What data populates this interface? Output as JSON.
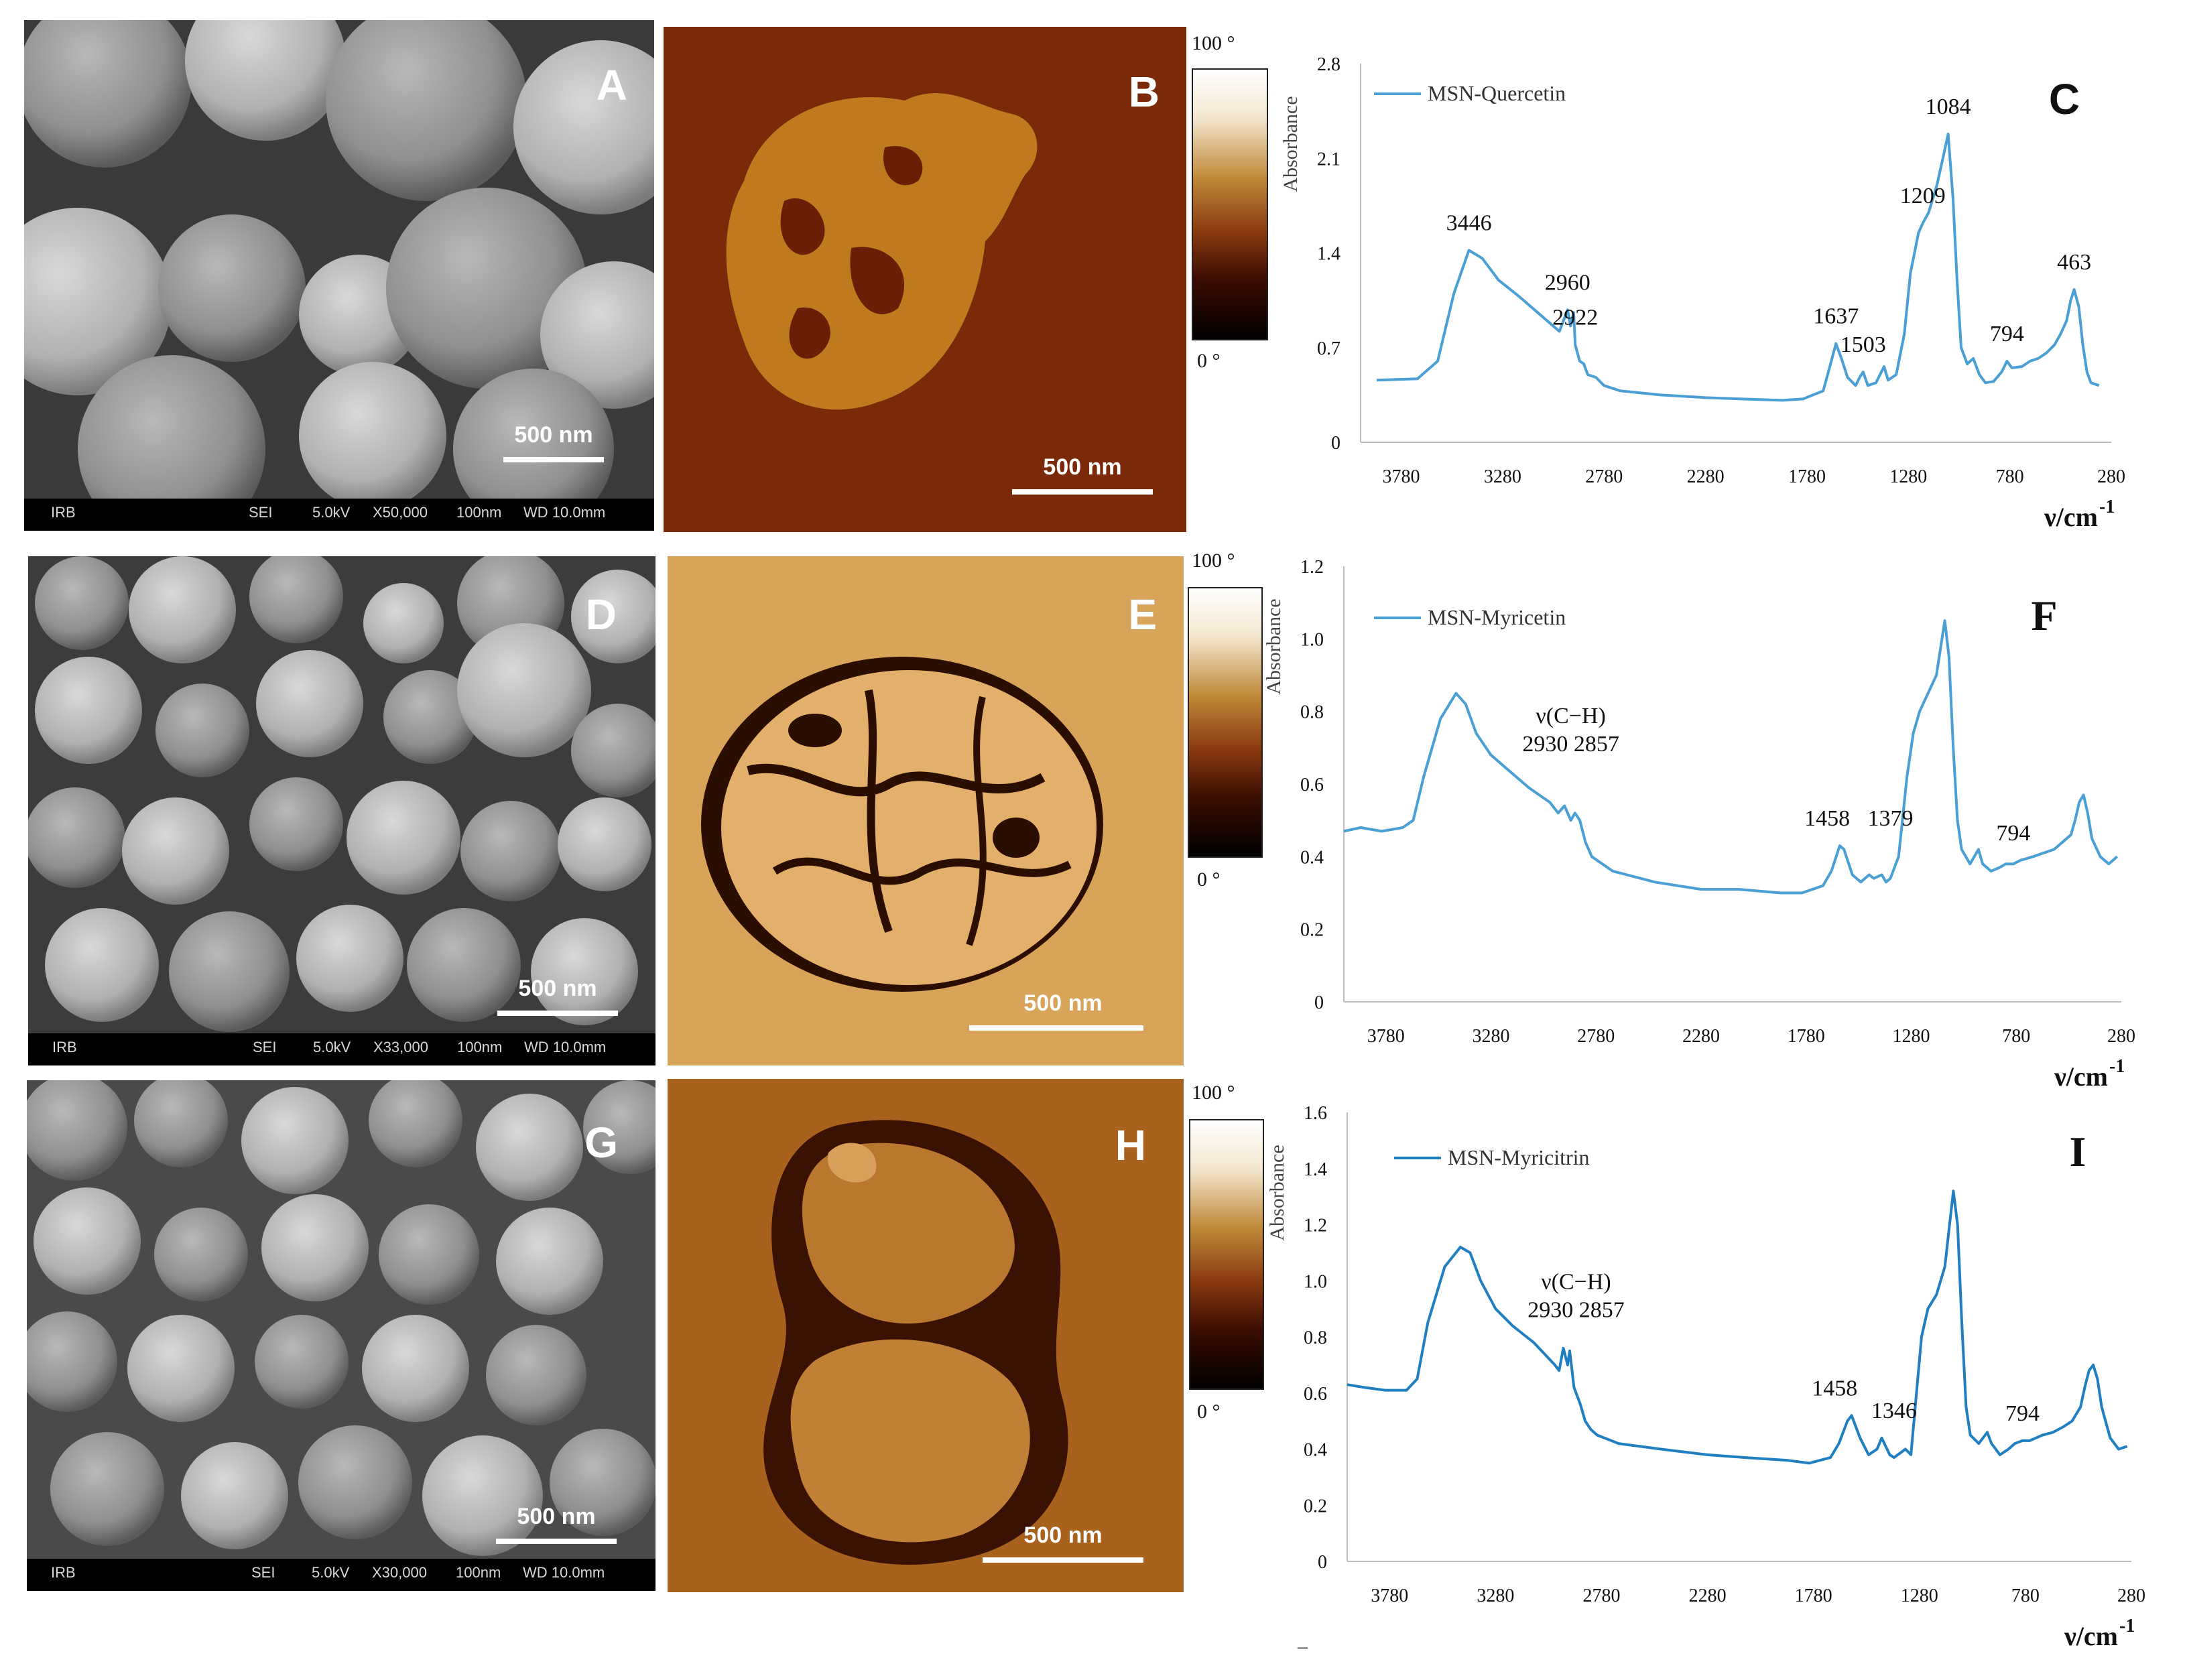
{
  "panels": {
    "A": {
      "letter": "A",
      "scale_label": "500 nm",
      "footer": {
        "lab": "IRB",
        "mode": "SEI",
        "kv": "5.0kV",
        "mag": "X50,000",
        "bar": "100nm",
        "wd": "WD 10.0mm"
      }
    },
    "D": {
      "letter": "D",
      "scale_label": "500 nm",
      "footer": {
        "lab": "IRB",
        "mode": "SEI",
        "kv": "5.0kV",
        "mag": "X33,000",
        "bar": "100nm",
        "wd": "WD 10.0mm"
      }
    },
    "G": {
      "letter": "G",
      "scale_label": "500 nm",
      "footer": {
        "lab": "IRB",
        "mode": "SEI",
        "kv": "5.0kV",
        "mag": "X30,000",
        "bar": "100nm",
        "wd": "WD 10.0mm"
      }
    },
    "B": {
      "letter": "B",
      "scale_label": "500 nm",
      "cbar_top": "100 °",
      "cbar_bottom": "0 °"
    },
    "E": {
      "letter": "E",
      "scale_label": "500 nm",
      "cbar_top": "100 °",
      "cbar_bottom": "0 °"
    },
    "H": {
      "letter": "H",
      "scale_label": "500 nm",
      "cbar_top": "100 °",
      "cbar_bottom": "0 °"
    }
  },
  "colors": {
    "spectrum_c": "#4a9fd4",
    "spectrum_f": "#4a9fd4",
    "spectrum_i": "#1f7fc0"
  },
  "chart_data": [
    {
      "type": "line",
      "letter": "C",
      "ylabel": "Absorbance",
      "xlabel": "ν/cm",
      "xlabel_exp": "-1",
      "xticks": [
        3780,
        3280,
        2780,
        2280,
        1780,
        1280,
        780,
        280
      ],
      "xlim": [
        3980,
        280
      ],
      "yticks": [
        "0",
        "0.7",
        "1.4",
        "2.1",
        "2.8"
      ],
      "ylim": [
        0,
        2.8
      ],
      "series": [
        {
          "name": "MSN-Quercetin",
          "x": [
            3900,
            3700,
            3600,
            3520,
            3446,
            3380,
            3300,
            3200,
            3100,
            3000,
            2980,
            2960,
            2945,
            2930,
            2922,
            2900,
            2880,
            2860,
            2820,
            2780,
            2700,
            2500,
            2280,
            2100,
            1900,
            1800,
            1700,
            1660,
            1637,
            1610,
            1580,
            1540,
            1520,
            1503,
            1480,
            1440,
            1400,
            1380,
            1340,
            1300,
            1270,
            1250,
            1230,
            1209,
            1180,
            1140,
            1110,
            1084,
            1060,
            1040,
            1020,
            990,
            960,
            930,
            900,
            860,
            820,
            794,
            770,
            720,
            680,
            640,
            600,
            560,
            530,
            500,
            480,
            463,
            440,
            420,
            400,
            380,
            340
          ],
          "y": [
            0.46,
            0.47,
            0.6,
            1.1,
            1.42,
            1.36,
            1.2,
            1.08,
            0.95,
            0.82,
            0.9,
            0.98,
            0.86,
            0.96,
            0.72,
            0.6,
            0.58,
            0.5,
            0.48,
            0.42,
            0.38,
            0.35,
            0.33,
            0.32,
            0.31,
            0.32,
            0.38,
            0.6,
            0.73,
            0.62,
            0.48,
            0.42,
            0.48,
            0.52,
            0.42,
            0.44,
            0.56,
            0.46,
            0.5,
            0.8,
            1.25,
            1.4,
            1.55,
            1.62,
            1.7,
            1.9,
            2.1,
            2.28,
            1.8,
            1.2,
            0.7,
            0.58,
            0.62,
            0.5,
            0.44,
            0.45,
            0.52,
            0.6,
            0.55,
            0.56,
            0.6,
            0.62,
            0.66,
            0.72,
            0.8,
            0.9,
            1.05,
            1.13,
            1.0,
            0.72,
            0.52,
            0.44,
            0.42
          ]
        }
      ],
      "annotations": [
        {
          "text": "3446",
          "x": 3446,
          "y": 1.42
        },
        {
          "text": "2960",
          "x": 2960,
          "y": 0.98
        },
        {
          "text": "2922",
          "x": 2922,
          "y": 0.72
        },
        {
          "text": "1637",
          "x": 1637,
          "y": 0.73
        },
        {
          "text": "1503",
          "x": 1503,
          "y": 0.52
        },
        {
          "text": "1209",
          "x": 1209,
          "y": 1.62
        },
        {
          "text": "1084",
          "x": 1084,
          "y": 2.28
        },
        {
          "text": "794",
          "x": 794,
          "y": 0.6
        },
        {
          "text": "463",
          "x": 463,
          "y": 1.13
        }
      ]
    },
    {
      "type": "line",
      "letter": "F",
      "ylabel": "Absorbance",
      "xlabel": "ν/cm",
      "xlabel_exp": "-1",
      "xticks": [
        3780,
        3280,
        2780,
        2280,
        1780,
        1280,
        780,
        280
      ],
      "xlim": [
        3980,
        280
      ],
      "yticks": [
        "0",
        "0.2",
        "0.4",
        "0.6",
        "0.8",
        "1.0",
        "1.2"
      ],
      "ylim": [
        0,
        1.2
      ],
      "series": [
        {
          "name": "MSN-Myricetin",
          "x": [
            3980,
            3900,
            3800,
            3700,
            3650,
            3600,
            3520,
            3446,
            3400,
            3350,
            3280,
            3200,
            3100,
            3000,
            2960,
            2930,
            2900,
            2880,
            2857,
            2830,
            2800,
            2700,
            2500,
            2280,
            2100,
            1900,
            1800,
            1700,
            1660,
            1620,
            1600,
            1560,
            1520,
            1480,
            1458,
            1420,
            1400,
            1379,
            1340,
            1300,
            1270,
            1240,
            1200,
            1160,
            1120,
            1100,
            1080,
            1060,
            1040,
            1000,
            960,
            940,
            900,
            860,
            830,
            794,
            760,
            700,
            650,
            600,
            560,
            520,
            500,
            480,
            460,
            440,
            420,
            380,
            340,
            300
          ],
          "y": [
            0.47,
            0.48,
            0.47,
            0.48,
            0.5,
            0.62,
            0.78,
            0.85,
            0.82,
            0.74,
            0.68,
            0.64,
            0.59,
            0.55,
            0.52,
            0.54,
            0.5,
            0.52,
            0.5,
            0.44,
            0.4,
            0.36,
            0.33,
            0.31,
            0.31,
            0.3,
            0.3,
            0.32,
            0.36,
            0.43,
            0.42,
            0.35,
            0.33,
            0.35,
            0.34,
            0.35,
            0.33,
            0.34,
            0.4,
            0.62,
            0.74,
            0.8,
            0.85,
            0.9,
            1.05,
            0.95,
            0.7,
            0.5,
            0.42,
            0.38,
            0.42,
            0.38,
            0.36,
            0.37,
            0.38,
            0.38,
            0.39,
            0.4,
            0.41,
            0.42,
            0.44,
            0.46,
            0.5,
            0.55,
            0.57,
            0.52,
            0.45,
            0.4,
            0.38,
            0.4
          ]
        }
      ],
      "annotations": [
        {
          "text": "ν(C−H)",
          "x": 2900,
          "y": 0.62,
          "line": 1
        },
        {
          "text": "2930 2857",
          "x": 2900,
          "y": 0.62,
          "line": 2
        },
        {
          "text": "1458",
          "x": 1680,
          "y": 0.43
        },
        {
          "text": "1379",
          "x": 1379,
          "y": 0.43
        },
        {
          "text": "794",
          "x": 794,
          "y": 0.39
        }
      ]
    },
    {
      "type": "line",
      "letter": "I",
      "ylabel": "Absorbance",
      "xlabel": "ν/cm",
      "xlabel_exp": "-1",
      "xticks": [
        3780,
        3280,
        2780,
        2280,
        1780,
        1280,
        780,
        280
      ],
      "xlim": [
        3980,
        280
      ],
      "yticks": [
        "0",
        "0.2",
        "0.4",
        "0.6",
        "0.8",
        "1.0",
        "1.2",
        "1.4",
        "1.6"
      ],
      "ylim": [
        0,
        1.6
      ],
      "series": [
        {
          "name": "MSN-Myricitrin",
          "x": [
            3980,
            3900,
            3800,
            3700,
            3650,
            3600,
            3520,
            3446,
            3400,
            3350,
            3280,
            3200,
            3100,
            3000,
            2980,
            2960,
            2940,
            2930,
            2910,
            2880,
            2857,
            2830,
            2800,
            2700,
            2500,
            2280,
            2100,
            1900,
            1800,
            1700,
            1660,
            1620,
            1600,
            1560,
            1520,
            1480,
            1458,
            1420,
            1400,
            1346,
            1320,
            1300,
            1270,
            1240,
            1200,
            1160,
            1120,
            1100,
            1080,
            1060,
            1040,
            1000,
            960,
            940,
            900,
            860,
            830,
            794,
            760,
            700,
            650,
            600,
            560,
            520,
            500,
            480,
            460,
            440,
            420,
            380,
            340,
            300
          ],
          "y": [
            0.63,
            0.62,
            0.61,
            0.61,
            0.65,
            0.85,
            1.05,
            1.12,
            1.1,
            1.0,
            0.9,
            0.84,
            0.78,
            0.7,
            0.68,
            0.76,
            0.7,
            0.75,
            0.62,
            0.56,
            0.5,
            0.47,
            0.45,
            0.42,
            0.4,
            0.38,
            0.37,
            0.36,
            0.35,
            0.37,
            0.42,
            0.5,
            0.52,
            0.44,
            0.38,
            0.4,
            0.44,
            0.38,
            0.37,
            0.4,
            0.38,
            0.55,
            0.8,
            0.9,
            0.95,
            1.05,
            1.32,
            1.2,
            0.85,
            0.55,
            0.45,
            0.42,
            0.46,
            0.42,
            0.38,
            0.4,
            0.42,
            0.43,
            0.43,
            0.45,
            0.46,
            0.48,
            0.5,
            0.55,
            0.62,
            0.68,
            0.7,
            0.65,
            0.55,
            0.44,
            0.4,
            0.41
          ]
        }
      ],
      "annotations": [
        {
          "text": "ν(C−H)",
          "x": 2900,
          "y": 0.78,
          "line": 1
        },
        {
          "text": "2930 2857",
          "x": 2900,
          "y": 0.78,
          "line": 2
        },
        {
          "text": "1458",
          "x": 1680,
          "y": 0.52
        },
        {
          "text": "1346",
          "x": 1400,
          "y": 0.44
        },
        {
          "text": "794",
          "x": 794,
          "y": 0.43
        }
      ]
    }
  ],
  "footer_mark": "–"
}
